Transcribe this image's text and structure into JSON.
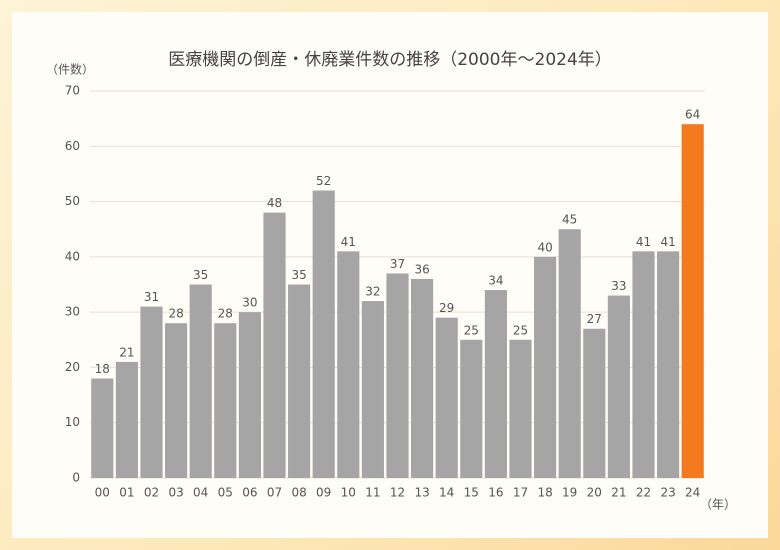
{
  "chart_data": {
    "type": "bar",
    "title": "医療機関の倒産・休廃業件数の推移（2000年～2024年）",
    "y_label": "（件数）",
    "x_label": "（年）",
    "categories": [
      "00",
      "01",
      "02",
      "03",
      "04",
      "05",
      "06",
      "07",
      "08",
      "09",
      "10",
      "11",
      "12",
      "13",
      "14",
      "15",
      "16",
      "17",
      "18",
      "19",
      "20",
      "21",
      "22",
      "23",
      "24"
    ],
    "values": [
      18,
      21,
      31,
      28,
      35,
      28,
      30,
      48,
      35,
      52,
      41,
      32,
      37,
      36,
      29,
      25,
      34,
      25,
      40,
      45,
      27,
      33,
      41,
      41,
      64
    ],
    "colors": [
      "#a5a5a5",
      "#a5a5a5",
      "#a5a5a5",
      "#a5a5a5",
      "#a5a5a5",
      "#a5a5a5",
      "#a5a5a5",
      "#a5a5a5",
      "#a5a5a5",
      "#a5a5a5",
      "#a5a5a5",
      "#a5a5a5",
      "#a5a5a5",
      "#a5a5a5",
      "#a5a5a5",
      "#a5a5a5",
      "#a5a5a5",
      "#a5a5a5",
      "#a5a5a5",
      "#a5a5a5",
      "#a5a5a5",
      "#a5a5a5",
      "#a5a5a5",
      "#a5a5a5",
      "#f47a20"
    ],
    "ylim": [
      0,
      70
    ],
    "yticks": [
      0,
      10,
      20,
      30,
      40,
      50,
      60,
      70
    ],
    "grid": true
  }
}
